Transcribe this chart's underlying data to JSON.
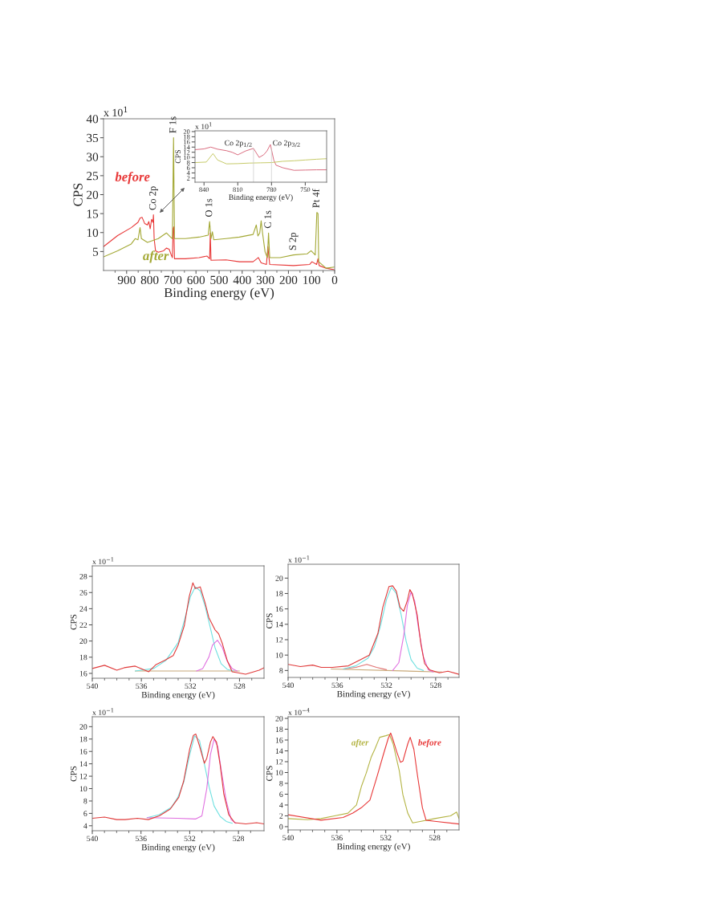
{
  "chart_data": [
    {
      "type": "line",
      "xlabel": "Binding energy (eV)",
      "ylabel": "CPS",
      "xlim": [
        1000,
        0
      ],
      "ylim": [
        0,
        40
      ],
      "xticks": [
        900,
        800,
        700,
        600,
        500,
        400,
        300,
        200,
        100,
        0,
        {
          "value": 950,
          "label": null
        },
        {
          "value": 850,
          "label": null
        },
        {
          "value": 750,
          "label": null
        },
        {
          "value": 650,
          "label": null
        },
        {
          "value": 550,
          "label": null
        },
        {
          "value": 450,
          "label": null
        },
        {
          "value": 350,
          "label": null
        },
        {
          "value": 250,
          "label": null
        },
        {
          "value": 150,
          "label": null
        },
        {
          "value": 50,
          "label": null
        }
      ],
      "yticks": [
        5,
        10,
        15,
        20,
        25,
        30,
        35,
        40
      ],
      "annotations": [
        "x 10$^{1}$",
        {
          "text": "F 1s",
          "x": 697,
          "y": 35
        },
        {
          "text": "Co 2p",
          "x": 784,
          "y": 14.7
        },
        {
          "text": "O 1s",
          "x": 541,
          "y": 12.9
        },
        {
          "text": "C 1s",
          "x": 286,
          "y": 9.9
        },
        {
          "text": "S 2p",
          "x": 178,
          "y": 4.1
        },
        {
          "text": "Pt 4f",
          "x": 77,
          "y": 15.3
        }
      ],
      "series": [
        {
          "name": "before",
          "color": "#e83838",
          "x": [
            1000,
            939,
            880,
            851,
            842,
            833,
            822,
            810,
            804,
            798,
            792,
            786,
            784,
            781,
            775,
            763,
            740,
            728,
            716,
            707,
            702,
            699,
            696,
            693,
            646,
            587,
            552,
            541,
            538,
            535,
            470,
            412,
            353,
            330,
            318,
            295,
            289,
            281,
            178,
            108,
            98,
            78,
            72,
            67,
            37,
            2
          ],
          "values": [
            6.3,
            9.2,
            11.3,
            12.7,
            13.8,
            14.0,
            12.4,
            12.0,
            12.9,
            11.0,
            13.5,
            12.7,
            14.7,
            8.4,
            5.2,
            4.8,
            5.2,
            5.9,
            5.6,
            4.1,
            3.4,
            11.0,
            11.5,
            3.1,
            3.1,
            3.4,
            3.8,
            3.1,
            9.9,
            2.7,
            2.8,
            2.3,
            2.3,
            3.4,
            2.0,
            1.6,
            6.3,
            1.6,
            1.3,
            1.6,
            2.3,
            1.6,
            3.1,
            1.3,
            0.6,
            0.2
          ]
        },
        {
          "name": "after",
          "color": "#a3a834",
          "x": [
            1000,
            939,
            880,
            863,
            851,
            842,
            836,
            810,
            763,
            728,
            710,
            702,
            697,
            693,
            646,
            587,
            547,
            541,
            535,
            529,
            523,
            470,
            412,
            353,
            339,
            332,
            324,
            318,
            312,
            301,
            291,
            286,
            281,
            236,
            178,
            119,
            102,
            84,
            77,
            72,
            69,
            37,
            2
          ],
          "values": [
            3.6,
            5.2,
            7.0,
            8.4,
            8.1,
            11.3,
            8.4,
            7.4,
            8.4,
            9.9,
            8.8,
            8.4,
            35,
            8.4,
            8.4,
            8.8,
            9.3,
            12.9,
            8.4,
            10.2,
            8.1,
            8.4,
            8.8,
            9.5,
            12.0,
            9.1,
            9.9,
            13.1,
            9.9,
            4.9,
            3.4,
            9.9,
            3.4,
            3.4,
            4.1,
            4.4,
            5.2,
            4.1,
            15.3,
            15.0,
            2.3,
            0.6,
            0.9
          ]
        }
      ]
    },
    {
      "type": "line",
      "xlabel": "Binding energy (eV)",
      "ylabel": "CPS",
      "xlim": [
        848,
        731
      ],
      "ylim": [
        0.4,
        20.3
      ],
      "xticks": [
        840,
        810,
        780,
        750
      ],
      "yticks": [
        2,
        4,
        6,
        8,
        10,
        12,
        14,
        16,
        18,
        20
      ],
      "annotations": [
        "x 10$^{1}$"
      ],
      "ref_lines": [
        {
          "axis": "x",
          "value": 796,
          "label": "Co 2p$_{1/2}$",
          "color": "#c8c8c8"
        },
        {
          "axis": "x",
          "value": 780,
          "label": "Co 2p$_{3/2}$",
          "color": "#c8c8c8"
        }
      ],
      "series": [
        {
          "color": "#d9687c",
          "x": [
            848,
            840,
            834,
            828,
            820,
            815,
            810,
            803,
            796,
            791,
            787,
            784,
            781,
            778,
            776,
            770,
            760,
            750,
            740,
            731
          ],
          "values": [
            13,
            13.3,
            14,
            13.2,
            12.6,
            12,
            11,
            12.5,
            13.5,
            10,
            11,
            12.5,
            15,
            9,
            7,
            6,
            5,
            5.1,
            5.2,
            5.2
          ]
        },
        {
          "color": "#c4c864",
          "x": [
            848,
            838,
            832,
            828,
            820,
            810,
            800,
            790,
            780,
            770,
            760,
            750,
            740,
            731
          ],
          "values": [
            8,
            8.2,
            11.5,
            9,
            7.5,
            7.6,
            7.8,
            7.9,
            8,
            8.5,
            8.7,
            9,
            9.3,
            9.5
          ]
        }
      ]
    },
    {
      "type": "line",
      "xlabel": "Binding energy (eV)",
      "ylabel": "CPS",
      "xlim": [
        540,
        526
      ],
      "ylim": [
        15.4,
        29.3
      ],
      "xticks": [
        540,
        536,
        532,
        528,
        {
          "value": 539,
          "label": null
        },
        {
          "value": 538,
          "label": null
        },
        {
          "value": 537,
          "label": null
        },
        {
          "value": 535,
          "label": null
        },
        {
          "value": 534,
          "label": null
        },
        {
          "value": 533,
          "label": null
        },
        {
          "value": 531,
          "label": null
        },
        {
          "value": 530,
          "label": null
        },
        {
          "value": 529,
          "label": null
        },
        {
          "value": 527,
          "label": null
        }
      ],
      "yticks": [
        16,
        18,
        20,
        22,
        24,
        26,
        28
      ],
      "annotations": [
        "x 10$^{−1}$"
      ],
      "series": [
        {
          "color": "#c8a878",
          "x": [
            536.5,
            528
          ],
          "values": [
            16.3,
            16.3
          ]
        },
        {
          "color": "#6fe0e0",
          "x": [
            536.5,
            535,
            534,
            533,
            532.5,
            532,
            531.6,
            531.2,
            530.8,
            530.4,
            530,
            529.5,
            529,
            528.5
          ],
          "values": [
            16.3,
            16.6,
            17.6,
            19.8,
            22.5,
            25.5,
            26.7,
            26.2,
            24.3,
            21.8,
            19.2,
            17.2,
            16.5,
            16.3
          ]
        },
        {
          "color": "#e070e0",
          "x": [
            531.5,
            531,
            530.5,
            530.2,
            529.8,
            529.4,
            529,
            528.6,
            528.2
          ],
          "values": [
            16.3,
            16.6,
            18.0,
            19.5,
            20.1,
            19.2,
            17.5,
            16.6,
            16.3
          ]
        },
        {
          "color": "#e03a3a",
          "x": [
            540,
            539,
            538,
            537.4,
            536.5,
            535.4,
            534.8,
            534.1,
            533.4,
            533,
            532.5,
            532.1,
            531.8,
            531.6,
            531.2,
            530.8,
            530.5,
            530,
            529.7,
            529.4,
            529,
            528.6,
            528.2,
            527.5,
            526.4,
            526
          ],
          "values": [
            16.6,
            17.0,
            16.4,
            16.7,
            16.9,
            16.2,
            17.1,
            17.6,
            18.2,
            19.5,
            21.9,
            25.5,
            27.2,
            26.5,
            26.7,
            24.7,
            22.9,
            21.4,
            20.9,
            19.7,
            17.6,
            16.2,
            16.1,
            15.9,
            16.4,
            16.7
          ]
        }
      ]
    },
    {
      "type": "line",
      "xlabel": "Binding energy (eV)",
      "ylabel": "CPS",
      "xlim": [
        540,
        526.1
      ],
      "ylim": [
        7.1,
        21.8
      ],
      "xticks": [
        540,
        536,
        532,
        528,
        {
          "value": 539,
          "label": null
        },
        {
          "value": 538,
          "label": null
        },
        {
          "value": 537,
          "label": null
        },
        {
          "value": 535,
          "label": null
        },
        {
          "value": 534,
          "label": null
        },
        {
          "value": 533,
          "label": null
        },
        {
          "value": 531,
          "label": null
        },
        {
          "value": 530,
          "label": null
        },
        {
          "value": 529,
          "label": null
        },
        {
          "value": 527,
          "label": null
        }
      ],
      "yticks": [
        8,
        10,
        12,
        14,
        16,
        18,
        20
      ],
      "annotations": [
        "x 10$^{−1}$"
      ],
      "series": [
        {
          "color": "#c8a878",
          "x": [
            536.5,
            527.5
          ],
          "values": [
            8.2,
            7.8
          ]
        },
        {
          "color": "#e07070",
          "x": [
            535.5,
            534.5,
            533.6,
            532.8,
            532
          ],
          "values": [
            8.2,
            8.4,
            8.8,
            8.4,
            8.1
          ]
        },
        {
          "color": "#6fe0e0",
          "x": [
            535.5,
            534.5,
            533.5,
            533,
            532.5,
            532,
            531.6,
            531.2,
            530.8,
            530.4,
            530,
            529.5,
            529
          ],
          "values": [
            8.2,
            8.6,
            9.6,
            11,
            13.7,
            17.2,
            18.8,
            18.0,
            15.2,
            11.8,
            9.4,
            8.3,
            8.0
          ]
        },
        {
          "color": "#e070e0",
          "x": [
            531.5,
            531,
            530.6,
            530.3,
            530,
            529.7,
            529.4,
            529,
            528.6,
            528.2
          ],
          "values": [
            8.0,
            9.0,
            12.5,
            16.5,
            18.2,
            17.0,
            13.5,
            9.8,
            8.1,
            7.8
          ]
        },
        {
          "color": "#e03a3a",
          "x": [
            540,
            539,
            538,
            537.3,
            536.4,
            535.1,
            534,
            533.4,
            532.7,
            532.3,
            531.8,
            531.5,
            531.2,
            530.9,
            530.6,
            530.3,
            530.1,
            529.9,
            529.5,
            529.2,
            528.9,
            528.5,
            527.7,
            527,
            526.1
          ],
          "values": [
            8.8,
            8.5,
            8.7,
            8.4,
            8.4,
            8.6,
            9.5,
            10.0,
            12.8,
            16.2,
            18.9,
            19.0,
            18.3,
            16.2,
            15.7,
            17.1,
            18.5,
            18.0,
            15.2,
            11.4,
            8.9,
            8.1,
            7.7,
            7.9,
            7.5
          ]
        }
      ]
    },
    {
      "type": "line",
      "xlabel": "Binding energy (eV)",
      "ylabel": "CPS",
      "xlim": [
        540,
        525.9
      ],
      "ylim": [
        3.2,
        21.6
      ],
      "xticks": [
        540,
        536,
        532,
        528,
        {
          "value": 539,
          "label": null
        },
        {
          "value": 538,
          "label": null
        },
        {
          "value": 537,
          "label": null
        },
        {
          "value": 535,
          "label": null
        },
        {
          "value": 534,
          "label": null
        },
        {
          "value": 533,
          "label": null
        },
        {
          "value": 531,
          "label": null
        },
        {
          "value": 530,
          "label": null
        },
        {
          "value": 529,
          "label": null
        },
        {
          "value": 527,
          "label": null
        }
      ],
      "yticks": [
        4,
        6,
        8,
        10,
        12,
        14,
        16,
        18,
        20
      ],
      "annotations": [
        "x 10$^{−1}$"
      ],
      "series": [
        {
          "color": "#6fe0e0",
          "x": [
            535.5,
            534.5,
            533.5,
            533,
            532.5,
            532,
            531.6,
            531.2,
            530.8,
            530.4,
            530,
            529.5,
            529,
            528.5
          ],
          "values": [
            5.3,
            5.8,
            7.0,
            8.5,
            11,
            15.5,
            18.5,
            17.8,
            14.0,
            10.2,
            7.2,
            5.5,
            4.7,
            4.4
          ]
        },
        {
          "color": "#e070e0",
          "x": [
            535.5,
            533,
            531.5,
            531,
            530.6,
            530.3,
            530,
            529.7,
            529.4,
            529,
            528.6,
            528.2
          ],
          "values": [
            5.3,
            5.2,
            5.1,
            5.6,
            10,
            15.5,
            18.0,
            16.8,
            12.8,
            8.0,
            5.0,
            4.4
          ]
        },
        {
          "color": "#e03a3a",
          "x": [
            540,
            539,
            538,
            537.3,
            536.3,
            535.4,
            534.5,
            533.6,
            532.9,
            532.5,
            532,
            531.7,
            531.5,
            531.2,
            530.8,
            530.6,
            530.3,
            530.1,
            529.8,
            529.5,
            529.2,
            528.8,
            528.3,
            527.4,
            526.5,
            525.9
          ],
          "values": [
            5.2,
            5.4,
            5.0,
            5.0,
            5.2,
            5.0,
            5.6,
            6.7,
            8.6,
            11.2,
            16.4,
            18.6,
            18.8,
            16.9,
            14.1,
            14.9,
            17.5,
            18.4,
            17.5,
            13.8,
            9.1,
            5.8,
            4.5,
            4.3,
            4.5,
            4.3
          ]
        }
      ]
    },
    {
      "type": "line",
      "xlabel": "Binding energy (eV)",
      "ylabel": "CPS",
      "xlim": [
        540,
        526
      ],
      "ylim": [
        -0.6,
        20.3
      ],
      "xticks": [
        540,
        536,
        532,
        528,
        {
          "value": 539,
          "label": null
        },
        {
          "value": 538,
          "label": null
        },
        {
          "value": 537,
          "label": null
        },
        {
          "value": 535,
          "label": null
        },
        {
          "value": 534,
          "label": null
        },
        {
          "value": 533,
          "label": null
        },
        {
          "value": 531,
          "label": null
        },
        {
          "value": 530,
          "label": null
        },
        {
          "value": 529,
          "label": null
        },
        {
          "value": 527,
          "label": null
        }
      ],
      "yticks": [
        0,
        2,
        4,
        6,
        8,
        10,
        12,
        14,
        16,
        18,
        20
      ],
      "annotations": [
        "x 10$^{−4}$"
      ],
      "series": [
        {
          "name": "after",
          "color": "#b4b444",
          "x": [
            540,
            538.4,
            537.3,
            536.2,
            535.1,
            534.4,
            534.0,
            533.6,
            533.2,
            532.9,
            532.5,
            532.0,
            531.7,
            531.4,
            530.9,
            530.6,
            530.2,
            529.8,
            529.1,
            528.0,
            526.7,
            526.2,
            526
          ],
          "values": [
            1.5,
            1.3,
            1.5,
            2.0,
            2.5,
            4.0,
            7.4,
            9.9,
            12.8,
            14.3,
            16.5,
            16.8,
            17.0,
            15.3,
            10.4,
            5.9,
            2.5,
            0.7,
            1.0,
            1.5,
            2.0,
            2.7,
            1.5
          ]
        },
        {
          "name": "before",
          "color": "#e83838",
          "x": [
            540,
            537.3,
            535.5,
            534.7,
            534.0,
            533.3,
            532.7,
            532.2,
            531.8,
            531.6,
            531.4,
            531.1,
            530.8,
            530.6,
            530.2,
            530.0,
            529.7,
            529.4,
            529.0,
            528.7,
            528.0,
            526
          ],
          "values": [
            2.2,
            1.2,
            1.7,
            2.5,
            3.5,
            4.9,
            9.4,
            13.3,
            16.3,
            17.3,
            16.0,
            13.8,
            11.9,
            12.1,
            15.3,
            16.5,
            14.3,
            9.4,
            3.5,
            1.2,
            1.0,
            0.5
          ]
        }
      ]
    }
  ]
}
